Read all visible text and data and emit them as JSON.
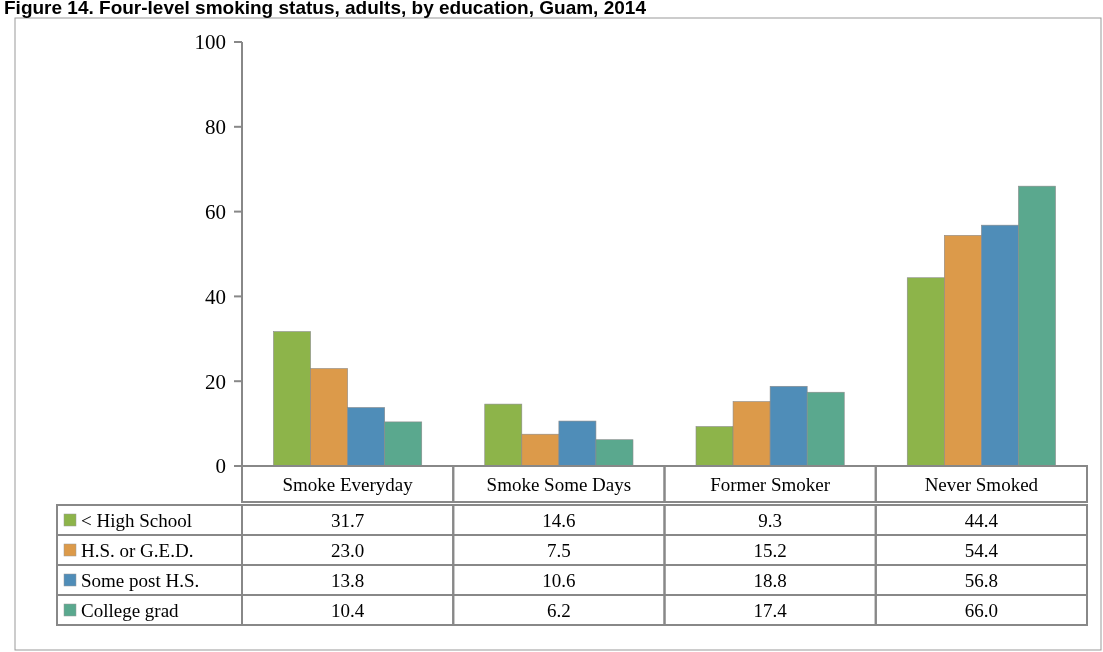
{
  "chart_data": {
    "type": "bar",
    "title": "Figure 14. Four-level smoking status, adults, by education, Guam, 2014",
    "categories": [
      "Smoke Everyday",
      "Smoke Some Days",
      "Former Smoker",
      "Never Smoked"
    ],
    "series": [
      {
        "name": "< High School",
        "color": "#8db44a",
        "values": [
          31.7,
          14.6,
          9.3,
          44.4
        ],
        "value_labels": [
          "31.7",
          "14.6",
          "9.3",
          "44.4"
        ]
      },
      {
        "name": "H.S. or G.E.D.",
        "color": "#dc9a4a",
        "values": [
          23.0,
          7.5,
          15.2,
          54.4
        ],
        "value_labels": [
          "23.0",
          "7.5",
          "15.2",
          "54.4"
        ]
      },
      {
        "name": "Some post H.S.",
        "color": "#4f8db8",
        "values": [
          13.8,
          10.6,
          18.8,
          56.8
        ],
        "value_labels": [
          "13.8",
          "10.6",
          "18.8",
          "56.8"
        ]
      },
      {
        "name": "College grad",
        "color": "#5aa88e",
        "values": [
          10.4,
          6.2,
          17.4,
          66.0
        ],
        "value_labels": [
          "10.4",
          "6.2",
          "17.4",
          "66.0"
        ]
      }
    ],
    "ylim": [
      0,
      100
    ],
    "yticks": [
      0,
      20,
      40,
      60,
      80,
      100
    ],
    "legend": "bottom"
  }
}
